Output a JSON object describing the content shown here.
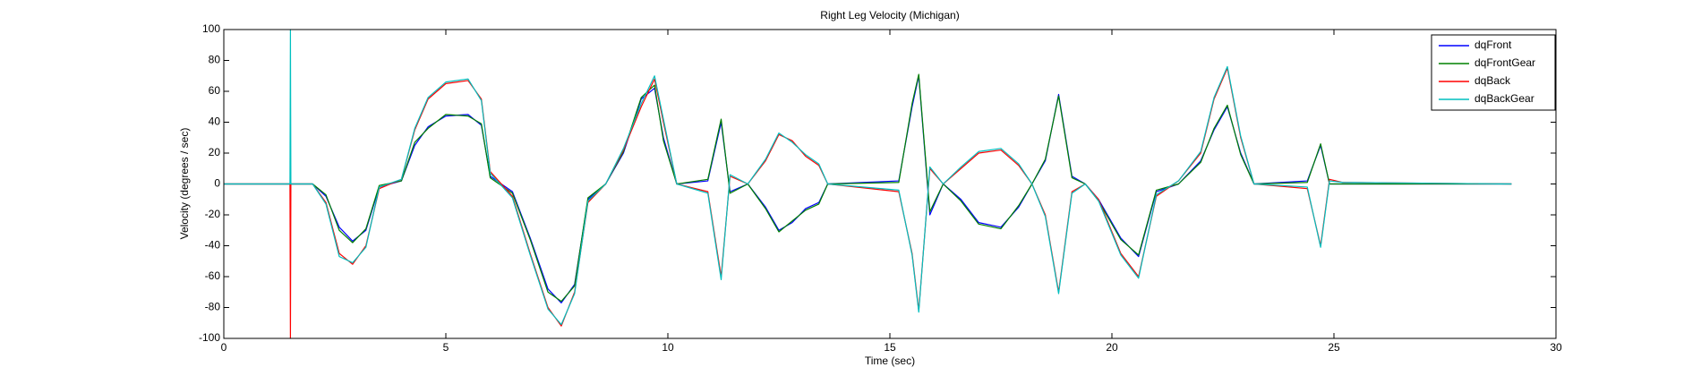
{
  "chart_data": {
    "type": "line",
    "title": "Right Leg Velocity (Michigan)",
    "xlabel": "Time (sec)",
    "ylabel": "Velocity (degrees / sec)",
    "xlim": [
      0,
      30
    ],
    "ylim": [
      -100,
      100
    ],
    "xticks": [
      0,
      5,
      10,
      15,
      20,
      25,
      30
    ],
    "yticks": [
      -100,
      -80,
      -60,
      -40,
      -20,
      0,
      20,
      40,
      60,
      80,
      100
    ],
    "grid": false,
    "legend": "upper right",
    "x": [
      0,
      1.49,
      1.5,
      1.51,
      2.0,
      2.3,
      2.6,
      2.9,
      3.2,
      3.5,
      4.0,
      4.3,
      4.6,
      5.0,
      5.5,
      5.8,
      6.0,
      6.5,
      6.9,
      7.3,
      7.6,
      7.9,
      8.2,
      8.6,
      9.0,
      9.4,
      9.7,
      9.9,
      10.2,
      10.9,
      11.2,
      11.4,
      11.8,
      12.2,
      12.5,
      12.8,
      13.1,
      13.4,
      13.6,
      15.2,
      15.5,
      15.65,
      15.9,
      16.2,
      16.6,
      17.0,
      17.5,
      17.9,
      18.2,
      18.5,
      18.8,
      19.1,
      19.4,
      19.7,
      20.2,
      20.6,
      21.0,
      21.5,
      22.0,
      22.3,
      22.6,
      22.9,
      23.2,
      24.4,
      24.7,
      24.9,
      25.2,
      29
    ],
    "series": [
      {
        "name": "dqFront",
        "color": "#0000ff",
        "values": [
          0,
          0,
          0,
          0,
          0,
          -8,
          -28,
          -37,
          -30,
          -2,
          2,
          25,
          37,
          44,
          45,
          38,
          5,
          -5,
          -35,
          -68,
          -77,
          -65,
          -10,
          0,
          20,
          55,
          62,
          30,
          0,
          2,
          40,
          -5,
          0,
          -15,
          -30,
          -25,
          -16,
          -12,
          0,
          2,
          50,
          70,
          -20,
          0,
          -10,
          -25,
          -28,
          -15,
          0,
          15,
          58,
          5,
          0,
          -10,
          -35,
          -47,
          -5,
          0,
          15,
          35,
          50,
          20,
          0,
          2,
          25,
          0,
          0,
          0
        ]
      },
      {
        "name": "dqFrontGear",
        "color": "#008000",
        "values": [
          0,
          0,
          0,
          0,
          0,
          -7,
          -30,
          -38,
          -29,
          -1,
          2,
          27,
          36,
          45,
          44,
          39,
          4,
          -6,
          -36,
          -70,
          -76,
          -66,
          -9,
          0,
          21,
          56,
          64,
          28,
          0,
          3,
          42,
          -6,
          0,
          -16,
          -31,
          -24,
          -17,
          -13,
          0,
          1,
          52,
          71,
          -18,
          0,
          -11,
          -26,
          -29,
          -14,
          0,
          16,
          57,
          4,
          0,
          -11,
          -36,
          -46,
          -4,
          0,
          14,
          36,
          51,
          19,
          0,
          1,
          26,
          0,
          0,
          0
        ]
      },
      {
        "name": "dqBack",
        "color": "#ff0000",
        "values": [
          0,
          0,
          -100,
          0,
          0,
          -12,
          -45,
          -52,
          -40,
          -3,
          3,
          35,
          55,
          65,
          67,
          55,
          8,
          -8,
          -45,
          -80,
          -92,
          -70,
          -12,
          0,
          22,
          50,
          68,
          40,
          0,
          -5,
          -60,
          5,
          0,
          15,
          32,
          28,
          18,
          12,
          0,
          -5,
          -45,
          -82,
          10,
          0,
          10,
          20,
          22,
          12,
          0,
          -20,
          -70,
          -5,
          0,
          -10,
          -45,
          -60,
          -8,
          2,
          20,
          55,
          75,
          30,
          0,
          -3,
          -40,
          3,
          1,
          0
        ]
      },
      {
        "name": "dqBackGear",
        "color": "#00bfbf",
        "values": [
          0,
          0,
          100,
          0,
          0,
          -13,
          -47,
          -51,
          -41,
          -2,
          3,
          36,
          56,
          66,
          68,
          54,
          7,
          -9,
          -46,
          -81,
          -91,
          -71,
          -11,
          0,
          23,
          52,
          70,
          42,
          0,
          -6,
          -62,
          6,
          0,
          16,
          33,
          27,
          19,
          13,
          0,
          -4,
          -46,
          -83,
          11,
          0,
          11,
          21,
          23,
          13,
          0,
          -21,
          -71,
          -6,
          0,
          -11,
          -46,
          -61,
          -7,
          2,
          21,
          56,
          76,
          31,
          0,
          -2,
          -41,
          2,
          1,
          0
        ]
      }
    ]
  }
}
